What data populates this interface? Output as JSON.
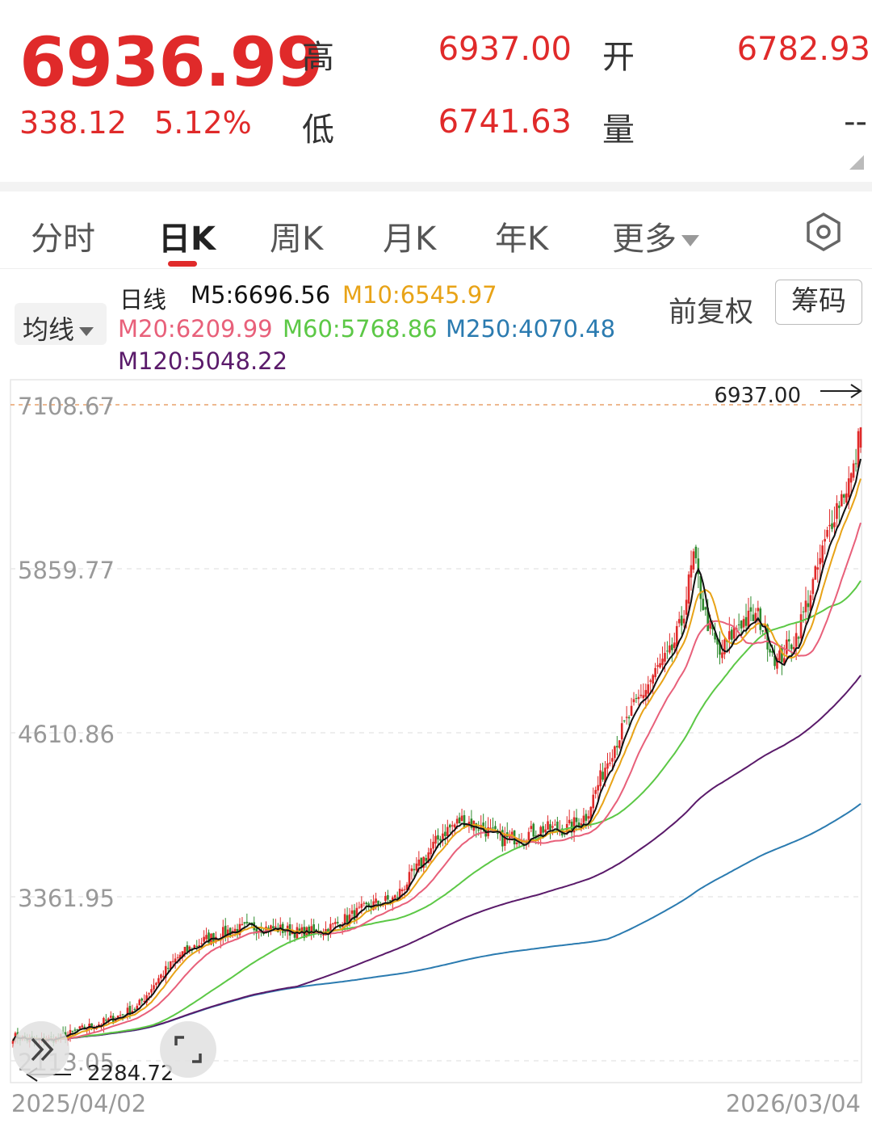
{
  "quote": {
    "price": "6936.99",
    "change": "338.12",
    "change_pct": "5.12%",
    "high_label": "高",
    "high_value": "6937.00",
    "open_label": "开",
    "open_value": "6782.93",
    "low_label": "低",
    "low_value": "6741.63",
    "volume_label": "量",
    "volume_value": "--",
    "color_up": "#e02a2a"
  },
  "tabs": [
    {
      "label": "分时"
    },
    {
      "label": "日K",
      "active": true
    },
    {
      "label": "周K"
    },
    {
      "label": "月K"
    },
    {
      "label": "年K"
    },
    {
      "label": "更多"
    }
  ],
  "indicator": {
    "selector_label": "均线",
    "period_label": "日线",
    "ma": [
      {
        "label": "M5:6696.56",
        "color": "#111111"
      },
      {
        "label": "M10:6545.97",
        "color": "#e8a317"
      },
      {
        "label": "M20:6209.99",
        "color": "#e8607a"
      },
      {
        "label": "M60:5768.86",
        "color": "#5cc846"
      },
      {
        "label": "M250:4070.48",
        "color": "#2b7bb0"
      },
      {
        "label": "M120:5048.22",
        "color": "#5a1a6a"
      }
    ],
    "adjust_label": "前复权",
    "chips_button": "筹码"
  },
  "chart_data": {
    "type": "candlestick",
    "y_ticks": [
      "7108.67",
      "5859.77",
      "4610.86",
      "3361.95",
      "2113.05"
    ],
    "ylim": [
      2113.05,
      7108.67
    ],
    "x_start": "2025/04/02",
    "x_end": "2026/03/04",
    "high_marker": "6937.00",
    "low_marker": "2284.72",
    "up_color": "#e02a2a",
    "down_color": "#2e8b2e",
    "key_closes": [
      [
        0,
        2300
      ],
      [
        10,
        2260
      ],
      [
        20,
        2290
      ],
      [
        30,
        2360
      ],
      [
        40,
        2420
      ],
      [
        52,
        2520
      ],
      [
        60,
        2720
      ],
      [
        70,
        2920
      ],
      [
        80,
        3030
      ],
      [
        90,
        3100
      ],
      [
        100,
        3130
      ],
      [
        110,
        3120
      ],
      [
        120,
        3090
      ],
      [
        130,
        3100
      ],
      [
        140,
        3200
      ],
      [
        150,
        3300
      ],
      [
        160,
        3350
      ],
      [
        170,
        3600
      ],
      [
        180,
        3850
      ],
      [
        188,
        3950
      ],
      [
        195,
        3900
      ],
      [
        205,
        3800
      ],
      [
        212,
        3820
      ],
      [
        222,
        3880
      ],
      [
        232,
        3880
      ],
      [
        240,
        3980
      ],
      [
        250,
        4450
      ],
      [
        260,
        4800
      ],
      [
        270,
        5100
      ],
      [
        275,
        5200
      ],
      [
        280,
        5450
      ],
      [
        285,
        5950
      ],
      [
        290,
        5500
      ],
      [
        296,
        5200
      ],
      [
        304,
        5450
      ],
      [
        312,
        5500
      ],
      [
        320,
        5150
      ],
      [
        328,
        5350
      ],
      [
        336,
        5800
      ],
      [
        344,
        6300
      ],
      [
        352,
        6600
      ],
      [
        355,
        6937
      ]
    ],
    "ma_end_values": {
      "M5": 6696.56,
      "M10": 6545.97,
      "M20": 6209.99,
      "M60": 5768.86,
      "M120": 5048.22,
      "M250": 4070.48
    },
    "grid": true
  }
}
